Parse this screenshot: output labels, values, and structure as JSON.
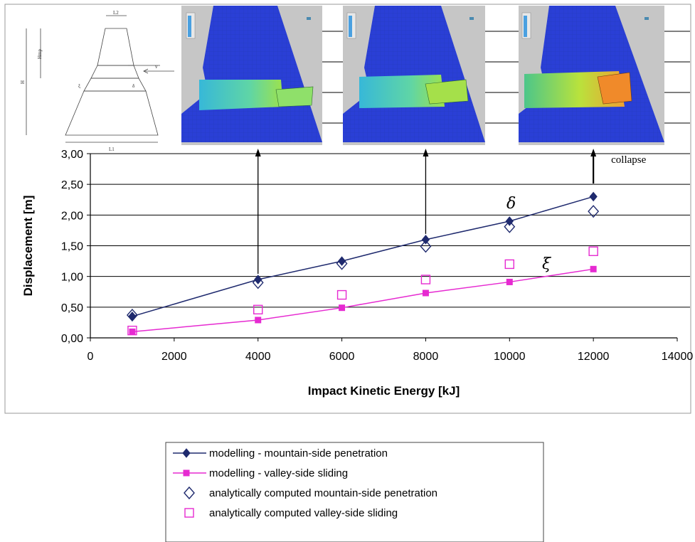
{
  "chart_data": {
    "type": "line",
    "title": "",
    "xlabel": "Impact Kinetic Energy [kJ]",
    "ylabel": "Displacement [m]",
    "xlim": [
      0,
      14000
    ],
    "ylim": [
      0,
      3
    ],
    "x_ticks": [
      0,
      2000,
      4000,
      6000,
      8000,
      10000,
      12000,
      14000
    ],
    "x_tick_labels": [
      "0",
      "2000",
      "4000",
      "6000",
      "8000",
      "10000",
      "12000",
      "14000"
    ],
    "y_ticks": [
      0,
      0.5,
      1,
      1.5,
      2,
      2.5,
      3
    ],
    "y_tick_labels": [
      "0,00",
      "0,50",
      "1,00",
      "1,50",
      "2,00",
      "2,50",
      "3,00"
    ],
    "grid": "horizontal",
    "legend_position": "bottom",
    "series": [
      {
        "name": "modelling - mountain-side penetration",
        "color": "#1f2a6e",
        "marker": "filled-diamond",
        "line": true,
        "x": [
          1000,
          4000,
          6000,
          8000,
          10000,
          12000
        ],
        "y": [
          0.35,
          0.95,
          1.25,
          1.6,
          1.9,
          2.3
        ]
      },
      {
        "name": "modelling - valley-side sliding",
        "color": "#e62ad1",
        "marker": "filled-square",
        "line": true,
        "x": [
          1000,
          4000,
          6000,
          8000,
          10000,
          12000
        ],
        "y": [
          0.1,
          0.29,
          0.49,
          0.73,
          0.91,
          1.12
        ]
      },
      {
        "name": "analytically computed mountain-side penetration",
        "color": "#1f2a6e",
        "marker": "open-diamond",
        "line": false,
        "x": [
          1000,
          4000,
          6000,
          8000,
          10000,
          12000
        ],
        "y": [
          0.37,
          0.9,
          1.21,
          1.49,
          1.81,
          2.06
        ]
      },
      {
        "name": "analytically computed valley-side sliding",
        "color": "#e62ad1",
        "marker": "open-square",
        "line": false,
        "x": [
          1000,
          4000,
          6000,
          8000,
          10000,
          12000
        ],
        "y": [
          0.12,
          0.46,
          0.7,
          0.95,
          1.2,
          1.41
        ]
      }
    ],
    "annotations": {
      "collapse": "collapse",
      "delta": "δ",
      "xi": "ξ",
      "arrows_at_x": [
        4000,
        8000,
        12000
      ]
    }
  },
  "sketch_labels": {
    "top_width": "L2",
    "bottom_width": "L1",
    "height": "Hmp",
    "total_height": "H",
    "velocity": "v",
    "xi": "ξ",
    "delta": "δ"
  },
  "colors": {
    "panel_bg": "#c6c6c6",
    "block": "#2a3fd6",
    "block_dark": "#1d2fb0"
  }
}
